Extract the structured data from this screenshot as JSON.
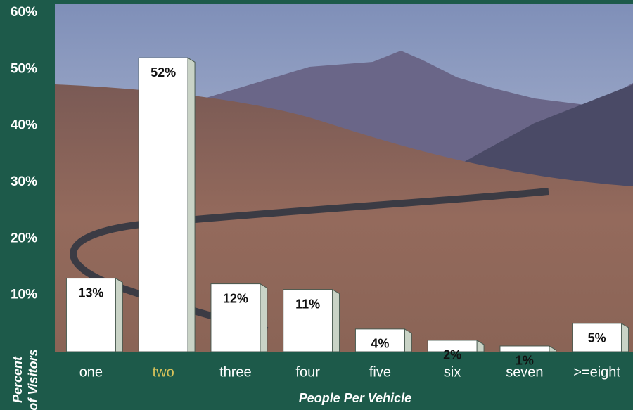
{
  "chart_data": {
    "type": "bar",
    "y_label": [
      "Percent",
      "of Visitors"
    ],
    "x_label": "People Per Vehicle",
    "categories": [
      "one",
      "two",
      "three",
      "four",
      "five",
      "six",
      "seven",
      ">=eight"
    ],
    "category_colors": [
      "#ffffff",
      "#d8c25a",
      "#ffffff",
      "#ffffff",
      "#ffffff",
      "#ffffff",
      "#ffffff",
      "#ffffff"
    ],
    "values": [
      13,
      52,
      12,
      11,
      4,
      2,
      1,
      5
    ],
    "value_labels": [
      "13%",
      "52%",
      "12%",
      "11%",
      "4%",
      "2%",
      "1%",
      "5%"
    ],
    "color": "#ffffff",
    "ylim": [
      0,
      60
    ],
    "yticks": [
      {
        "value": 10,
        "label": "10%"
      },
      {
        "value": 20,
        "label": "20%"
      },
      {
        "value": 30,
        "label": "30%"
      },
      {
        "value": 40,
        "label": "40%"
      },
      {
        "value": 50,
        "label": "50%"
      },
      {
        "value": 60,
        "label": "60%"
      }
    ]
  }
}
